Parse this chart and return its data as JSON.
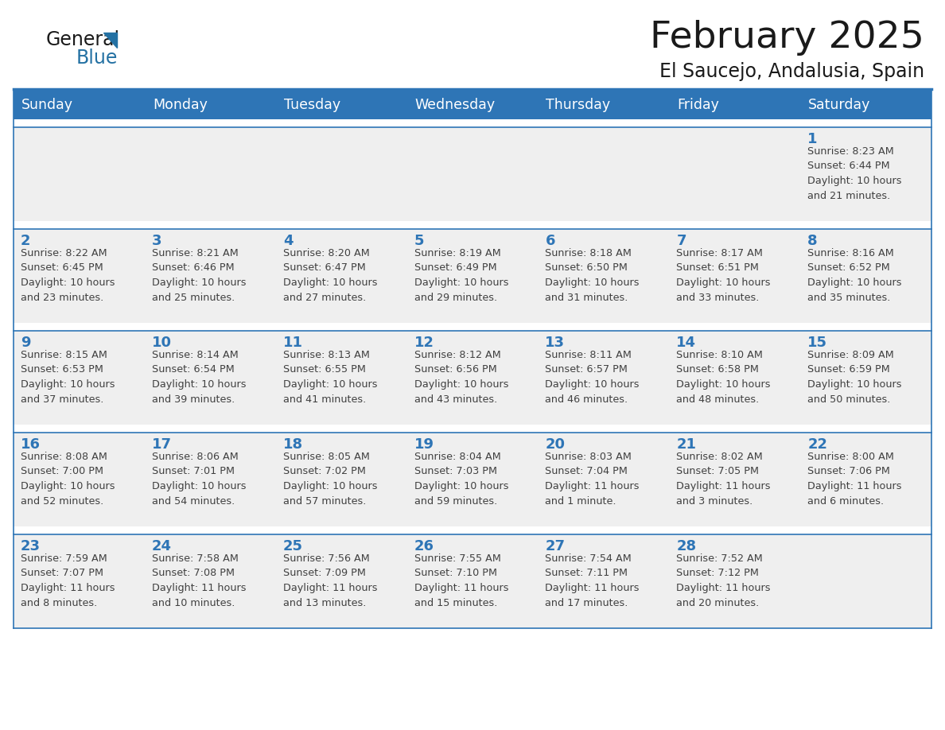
{
  "title": "February 2025",
  "subtitle": "El Saucejo, Andalusia, Spain",
  "days_of_week": [
    "Sunday",
    "Monday",
    "Tuesday",
    "Wednesday",
    "Thursday",
    "Friday",
    "Saturday"
  ],
  "header_bg": "#2E75B6",
  "header_text": "#FFFFFF",
  "cell_bg": "#EFEFEF",
  "cell_bg_white": "#FFFFFF",
  "day_number_color": "#2E75B6",
  "info_text_color": "#404040",
  "title_color": "#1a1a1a",
  "logo_general_color": "#1a1a1a",
  "logo_blue_color": "#2471A3",
  "calendar_data": [
    [
      {
        "day": null,
        "info": ""
      },
      {
        "day": null,
        "info": ""
      },
      {
        "day": null,
        "info": ""
      },
      {
        "day": null,
        "info": ""
      },
      {
        "day": null,
        "info": ""
      },
      {
        "day": null,
        "info": ""
      },
      {
        "day": 1,
        "info": "Sunrise: 8:23 AM\nSunset: 6:44 PM\nDaylight: 10 hours\nand 21 minutes."
      }
    ],
    [
      {
        "day": 2,
        "info": "Sunrise: 8:22 AM\nSunset: 6:45 PM\nDaylight: 10 hours\nand 23 minutes."
      },
      {
        "day": 3,
        "info": "Sunrise: 8:21 AM\nSunset: 6:46 PM\nDaylight: 10 hours\nand 25 minutes."
      },
      {
        "day": 4,
        "info": "Sunrise: 8:20 AM\nSunset: 6:47 PM\nDaylight: 10 hours\nand 27 minutes."
      },
      {
        "day": 5,
        "info": "Sunrise: 8:19 AM\nSunset: 6:49 PM\nDaylight: 10 hours\nand 29 minutes."
      },
      {
        "day": 6,
        "info": "Sunrise: 8:18 AM\nSunset: 6:50 PM\nDaylight: 10 hours\nand 31 minutes."
      },
      {
        "day": 7,
        "info": "Sunrise: 8:17 AM\nSunset: 6:51 PM\nDaylight: 10 hours\nand 33 minutes."
      },
      {
        "day": 8,
        "info": "Sunrise: 8:16 AM\nSunset: 6:52 PM\nDaylight: 10 hours\nand 35 minutes."
      }
    ],
    [
      {
        "day": 9,
        "info": "Sunrise: 8:15 AM\nSunset: 6:53 PM\nDaylight: 10 hours\nand 37 minutes."
      },
      {
        "day": 10,
        "info": "Sunrise: 8:14 AM\nSunset: 6:54 PM\nDaylight: 10 hours\nand 39 minutes."
      },
      {
        "day": 11,
        "info": "Sunrise: 8:13 AM\nSunset: 6:55 PM\nDaylight: 10 hours\nand 41 minutes."
      },
      {
        "day": 12,
        "info": "Sunrise: 8:12 AM\nSunset: 6:56 PM\nDaylight: 10 hours\nand 43 minutes."
      },
      {
        "day": 13,
        "info": "Sunrise: 8:11 AM\nSunset: 6:57 PM\nDaylight: 10 hours\nand 46 minutes."
      },
      {
        "day": 14,
        "info": "Sunrise: 8:10 AM\nSunset: 6:58 PM\nDaylight: 10 hours\nand 48 minutes."
      },
      {
        "day": 15,
        "info": "Sunrise: 8:09 AM\nSunset: 6:59 PM\nDaylight: 10 hours\nand 50 minutes."
      }
    ],
    [
      {
        "day": 16,
        "info": "Sunrise: 8:08 AM\nSunset: 7:00 PM\nDaylight: 10 hours\nand 52 minutes."
      },
      {
        "day": 17,
        "info": "Sunrise: 8:06 AM\nSunset: 7:01 PM\nDaylight: 10 hours\nand 54 minutes."
      },
      {
        "day": 18,
        "info": "Sunrise: 8:05 AM\nSunset: 7:02 PM\nDaylight: 10 hours\nand 57 minutes."
      },
      {
        "day": 19,
        "info": "Sunrise: 8:04 AM\nSunset: 7:03 PM\nDaylight: 10 hours\nand 59 minutes."
      },
      {
        "day": 20,
        "info": "Sunrise: 8:03 AM\nSunset: 7:04 PM\nDaylight: 11 hours\nand 1 minute."
      },
      {
        "day": 21,
        "info": "Sunrise: 8:02 AM\nSunset: 7:05 PM\nDaylight: 11 hours\nand 3 minutes."
      },
      {
        "day": 22,
        "info": "Sunrise: 8:00 AM\nSunset: 7:06 PM\nDaylight: 11 hours\nand 6 minutes."
      }
    ],
    [
      {
        "day": 23,
        "info": "Sunrise: 7:59 AM\nSunset: 7:07 PM\nDaylight: 11 hours\nand 8 minutes."
      },
      {
        "day": 24,
        "info": "Sunrise: 7:58 AM\nSunset: 7:08 PM\nDaylight: 11 hours\nand 10 minutes."
      },
      {
        "day": 25,
        "info": "Sunrise: 7:56 AM\nSunset: 7:09 PM\nDaylight: 11 hours\nand 13 minutes."
      },
      {
        "day": 26,
        "info": "Sunrise: 7:55 AM\nSunset: 7:10 PM\nDaylight: 11 hours\nand 15 minutes."
      },
      {
        "day": 27,
        "info": "Sunrise: 7:54 AM\nSunset: 7:11 PM\nDaylight: 11 hours\nand 17 minutes."
      },
      {
        "day": 28,
        "info": "Sunrise: 7:52 AM\nSunset: 7:12 PM\nDaylight: 11 hours\nand 20 minutes."
      },
      {
        "day": null,
        "info": ""
      }
    ]
  ]
}
